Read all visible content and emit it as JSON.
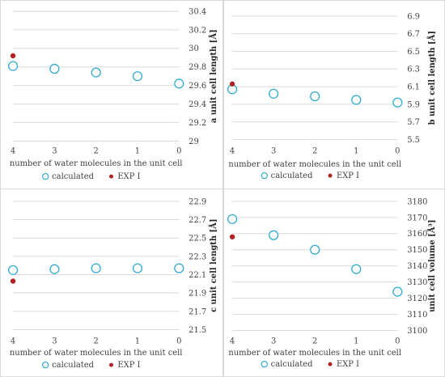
{
  "chart_data": [
    {
      "type": "scatter",
      "x": [
        4,
        3,
        2,
        1,
        0
      ],
      "series": [
        {
          "name": "calculated",
          "values": [
            29.81,
            29.78,
            29.74,
            29.7,
            29.62
          ],
          "marker": "open-circle",
          "color": "#2eaad1"
        },
        {
          "name": "EXP I",
          "values": [
            29.92,
            null,
            null,
            null,
            null
          ],
          "marker": "filled-circle",
          "color": "#b22222"
        }
      ],
      "xlabel": "number of water molecules in the unit cell",
      "ylabel": "a unit cell length [Å]",
      "ylim": [
        29,
        30.4
      ],
      "yticks": [
        "29",
        "29.2",
        "29.4",
        "29.6",
        "29.8",
        "30",
        "30.2",
        "30.4"
      ],
      "xticks": [
        "4",
        "3",
        "2",
        "1",
        "0"
      ],
      "grid": "horizontal",
      "legend": "bottom"
    },
    {
      "type": "scatter",
      "x": [
        4,
        3,
        2,
        1,
        0
      ],
      "series": [
        {
          "name": "calculated",
          "values": [
            6.07,
            6.02,
            5.99,
            5.95,
            5.92
          ],
          "marker": "open-circle",
          "color": "#2eaad1"
        },
        {
          "name": "EXP I",
          "values": [
            6.13,
            null,
            null,
            null,
            null
          ],
          "marker": "filled-circle",
          "color": "#b22222"
        }
      ],
      "xlabel": "number of water molecules in the unit cell",
      "ylabel": "b unit cell length [Å]",
      "ylim": [
        5.5,
        6.9
      ],
      "yticks": [
        "5.5",
        "5.7",
        "5.9",
        "6.1",
        "6.3",
        "6.5",
        "6.7",
        "6.9"
      ],
      "xticks": [
        "4",
        "3",
        "2",
        "1",
        "0"
      ],
      "grid": "horizontal",
      "legend": "bottom"
    },
    {
      "type": "scatter",
      "x": [
        4,
        3,
        2,
        1,
        0
      ],
      "series": [
        {
          "name": "calculated",
          "values": [
            22.15,
            22.16,
            22.17,
            22.17,
            22.17
          ],
          "marker": "open-circle",
          "color": "#2eaad1"
        },
        {
          "name": "EXP I",
          "values": [
            22.03,
            null,
            null,
            null,
            null
          ],
          "marker": "filled-circle",
          "color": "#b22222"
        }
      ],
      "xlabel": "number of water molecules in the unit cell",
      "ylabel": "c unit cell length [Å]",
      "ylim": [
        21.5,
        22.9
      ],
      "yticks": [
        "21.5",
        "21.7",
        "21.9",
        "22.1",
        "22.3",
        "22.5",
        "22.7",
        "22.9"
      ],
      "xticks": [
        "4",
        "3",
        "2",
        "1",
        "0"
      ],
      "grid": "horizontal",
      "legend": "bottom"
    },
    {
      "type": "scatter",
      "x": [
        4,
        3,
        2,
        1,
        0
      ],
      "series": [
        {
          "name": "calculated",
          "values": [
            3169,
            3159,
            3150,
            3138,
            3124
          ],
          "marker": "open-circle",
          "color": "#2eaad1"
        },
        {
          "name": "EXP I",
          "values": [
            3158,
            null,
            null,
            null,
            null
          ],
          "marker": "filled-circle",
          "color": "#b22222"
        }
      ],
      "xlabel": "number of water molecules in the unit cell",
      "ylabel": "unit cell volume [Å³]",
      "ylim": [
        3100,
        3180
      ],
      "yticks": [
        "3100",
        "3110",
        "3120",
        "3130",
        "3140",
        "3150",
        "3160",
        "3170",
        "3180"
      ],
      "xticks": [
        "4",
        "3",
        "2",
        "1",
        "0"
      ],
      "grid": "horizontal",
      "legend": "bottom"
    }
  ]
}
